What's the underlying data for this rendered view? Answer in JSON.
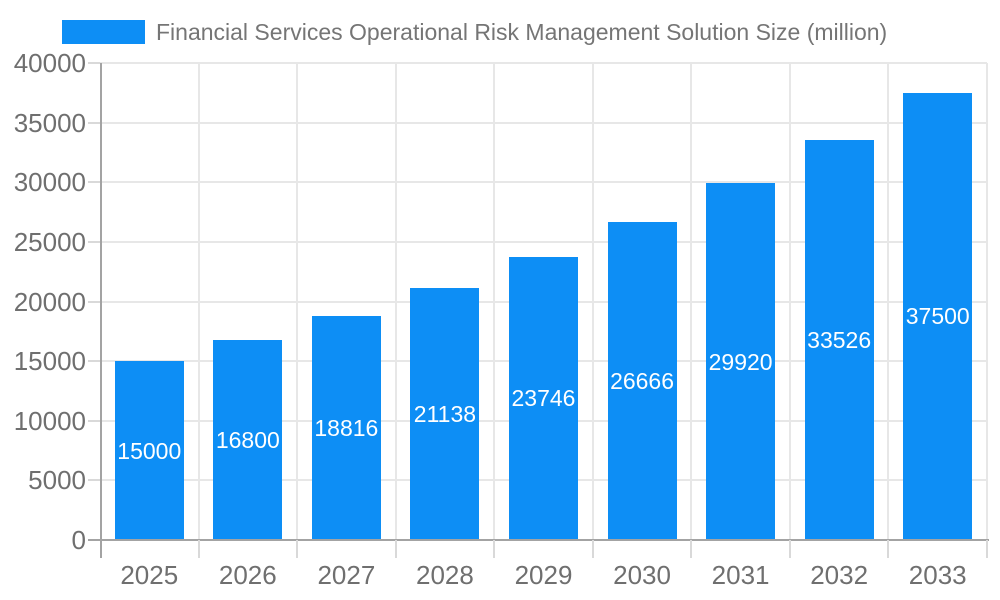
{
  "legend": {
    "label": "Financial Services Operational Risk Management Solution Size (million)"
  },
  "chart_data": {
    "type": "bar",
    "title": "Financial Services Operational Risk Management Solution Size (million)",
    "categories": [
      "2025",
      "2026",
      "2027",
      "2028",
      "2029",
      "2030",
      "2031",
      "2032",
      "2033"
    ],
    "values": [
      15000,
      16800,
      18816,
      21138,
      23746,
      26666,
      29920,
      33526,
      37500
    ],
    "xlabel": "",
    "ylabel": "",
    "ylim": [
      0,
      40000
    ],
    "ytick_step": 5000,
    "ytick_labels": [
      "0",
      "5000",
      "10000",
      "15000",
      "20000",
      "25000",
      "30000",
      "35000",
      "40000"
    ],
    "grid": true,
    "legend_position": "top",
    "value_labels": "inside-middle",
    "colors": {
      "bar": "#0d8ef5",
      "grid": "#e7e7e7",
      "axis": "#a3a3a3",
      "tick": "#d9d9d9",
      "tick_text": "#6f6f6f",
      "legend_text": "#757575",
      "value_label_text": "#ffffff"
    }
  }
}
